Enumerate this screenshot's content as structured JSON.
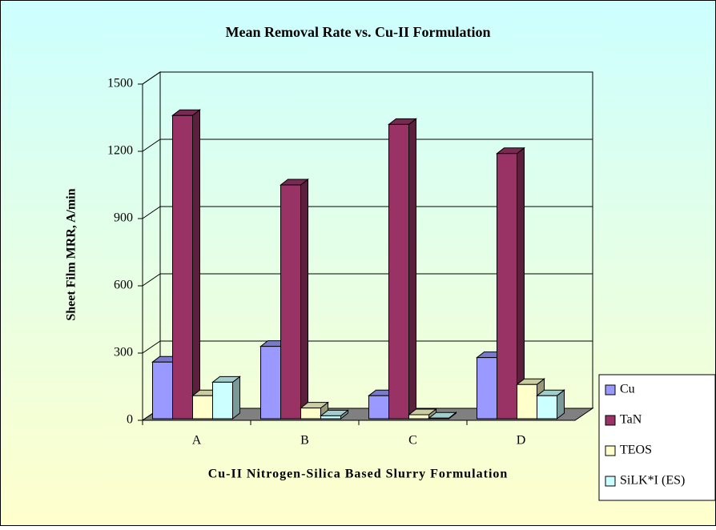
{
  "chart_data": {
    "type": "bar3d",
    "title": "Mean Removal Rate vs. Cu-II Formulation",
    "x_label": "Cu-II Nitrogen-Silica Based Slurry Formulation",
    "y_label": "Sheet Film MRR, A/min",
    "categories": [
      "A",
      "B",
      "C",
      "D"
    ],
    "series": [
      {
        "name": "Cu",
        "color": "#9999ff",
        "values": [
          260,
          330,
          110,
          280
        ]
      },
      {
        "name": "TaN",
        "color": "#993366",
        "values": [
          1360,
          1050,
          1320,
          1190
        ]
      },
      {
        "name": "TEOS",
        "color": "#ffffcc",
        "values": [
          110,
          55,
          25,
          160
        ]
      },
      {
        "name": "SiLK*I (ES)",
        "color": "#ccffff",
        "values": [
          170,
          20,
          10,
          110
        ]
      }
    ],
    "ylim": [
      0,
      1500
    ],
    "yticks": [
      0,
      300,
      600,
      900,
      1200,
      1500
    ],
    "grid": true,
    "legend": "right"
  }
}
